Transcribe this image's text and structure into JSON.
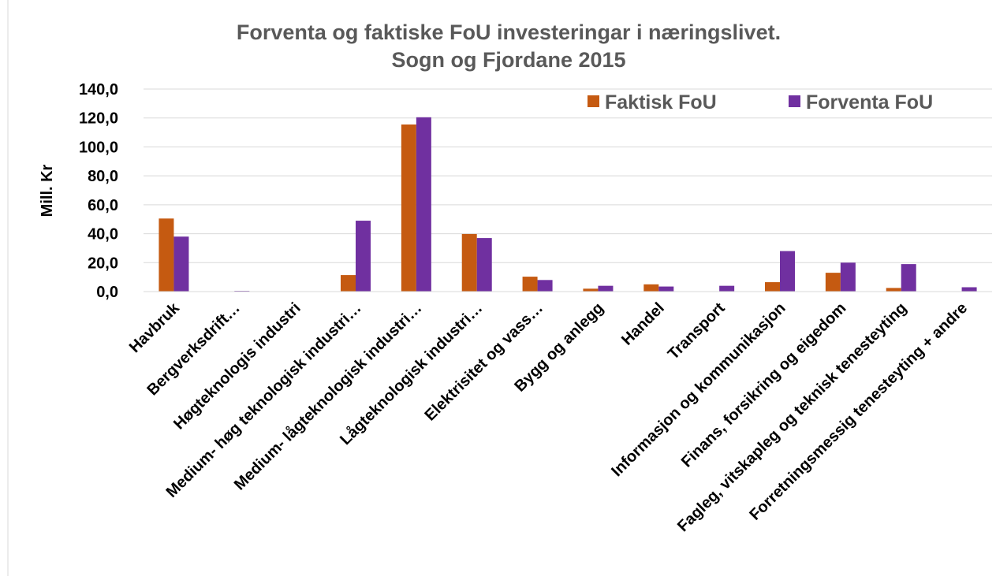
{
  "chart_data": {
    "type": "bar",
    "title": "Forventa og faktiske FoU investeringar i næringslivet.",
    "subtitle": "Sogn og Fjordane 2015",
    "ylabel": "Mill. Kr",
    "categories": [
      "Havbruk",
      "Bergverksdrift…",
      "Høgteknologis industri",
      "Medium- høg teknologisk industri…",
      "Medium- lågteknologisk industri…",
      "Lågteknologisk industri…",
      "Elektrisitet og vass…",
      "Bygg og anlegg",
      "Handel",
      "Transport",
      "Informasjon og kommunikasjon",
      "Finans, forsikring og eigedom",
      "Fagleg, vitskapleg og teknisk tenesteyting",
      "Forretningsmessig tenesteyting + andre"
    ],
    "series": [
      {
        "name": "Faktisk FoU",
        "color": "#c55a11",
        "values": [
          50.5,
          0,
          0,
          11.4,
          115.5,
          39.8,
          10.3,
          2,
          5,
          0,
          6.5,
          13,
          2.5,
          0
        ]
      },
      {
        "name": "Forventa FoU",
        "color": "#7030a0",
        "values": [
          38,
          0.5,
          0,
          49,
          120.5,
          37,
          8,
          4,
          3.5,
          4,
          28,
          20,
          19,
          3
        ]
      }
    ],
    "ylim": [
      0,
      140
    ],
    "yticks": [
      {
        "value": 0,
        "label": "0,0"
      },
      {
        "value": 20,
        "label": "20,0"
      },
      {
        "value": 40,
        "label": "40,0"
      },
      {
        "value": 60,
        "label": "60,0"
      },
      {
        "value": 80,
        "label": "80,0"
      },
      {
        "value": 100,
        "label": "100,0"
      },
      {
        "value": 120,
        "label": "120,0"
      },
      {
        "value": 140,
        "label": "140,0"
      }
    ],
    "grid": true,
    "legend": "top-right"
  }
}
